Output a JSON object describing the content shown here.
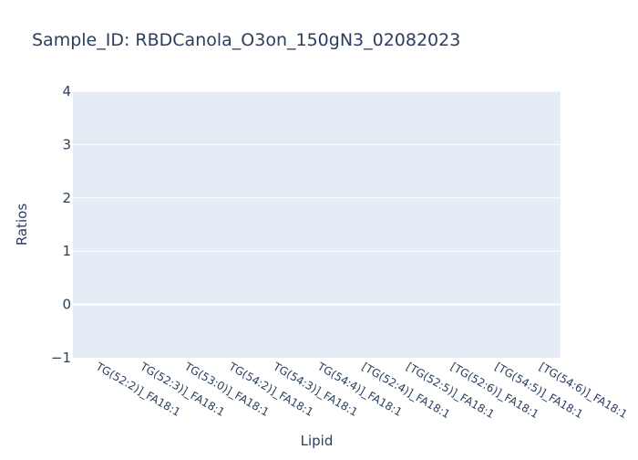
{
  "chart_data": {
    "type": "bar",
    "title": "Sample_ID: RBDCanola_O3on_150gN3_02082023",
    "xlabel": "Lipid",
    "ylabel": "Ratios",
    "categories": [
      "TG(52:2)]_FA18:1",
      "TG(52:3)]_FA18:1",
      "TG(53:0)]_FA18:1",
      "TG(54:2)]_FA18:1",
      "TG(54:3)]_FA18:1",
      "TG(54:4)]_FA18:1",
      "[TG(52:4)]_FA18:1",
      "[TG(52:5)]_FA18:1",
      "[TG(52:6)]_FA18:1",
      "[TG(54:5)]_FA18:1",
      "[TG(54:6)]_FA18:1"
    ],
    "values": [
      null,
      null,
      null,
      null,
      null,
      null,
      null,
      null,
      null,
      null,
      null
    ],
    "ylim": [
      -1,
      4
    ],
    "yticks": [
      "−1",
      "0",
      "1",
      "2",
      "3",
      "4"
    ],
    "grid": true,
    "legend": "none"
  },
  "colors": {
    "plot_background": "#E5ECF6",
    "gridline": "#FFFFFF",
    "text": "#2A3F5F",
    "bar": "#636EFA"
  }
}
